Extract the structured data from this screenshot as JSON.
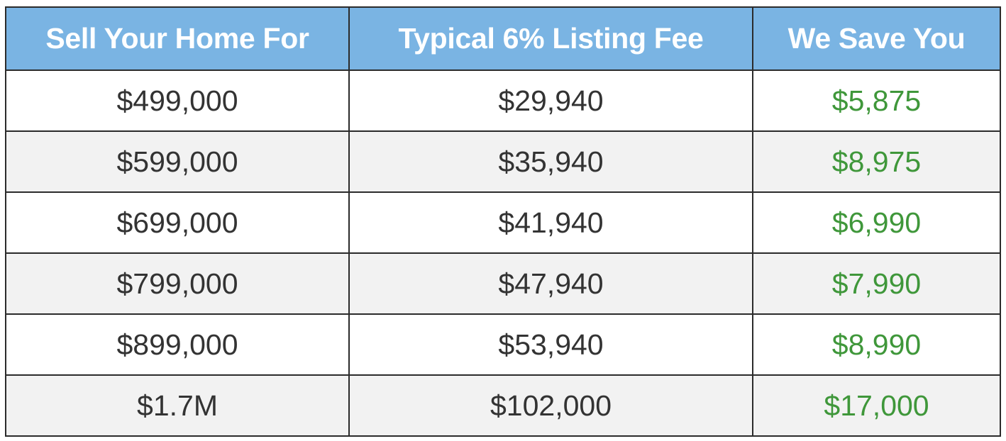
{
  "colors": {
    "header_bg": "#7ab4e3",
    "header_text": "#ffffff",
    "body_text": "#333333",
    "savings_text": "#3f973a",
    "row_alt_bg": "#f2f2f2",
    "border": "#2b2b2b"
  },
  "table": {
    "headers": [
      "Sell Your Home For",
      "Typical 6% Listing Fee",
      "We Save You"
    ],
    "rows": [
      [
        "$499,000",
        "$29,940",
        "$5,875"
      ],
      [
        "$599,000",
        "$35,940",
        "$8,975"
      ],
      [
        "$699,000",
        "$41,940",
        "$6,990"
      ],
      [
        "$799,000",
        "$47,940",
        "$7,990"
      ],
      [
        "$899,000",
        "$53,940",
        "$8,990"
      ],
      [
        "$1.7M",
        "$102,000",
        "$17,000"
      ]
    ]
  }
}
